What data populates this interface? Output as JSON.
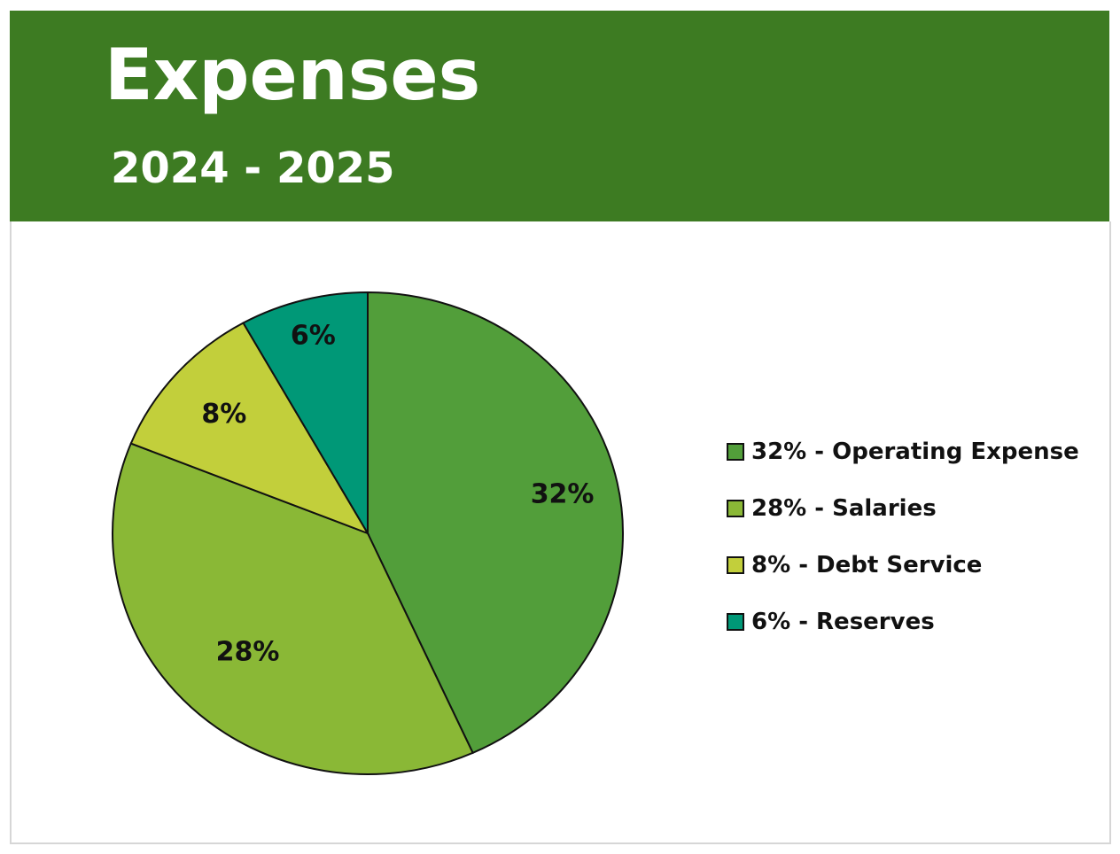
{
  "header": {
    "title": "Expenses",
    "subtitle": "2024 - 2025"
  },
  "chart_data": {
    "type": "pie",
    "title": "Expenses",
    "subtitle": "2024 - 2025",
    "categories": [
      "Operating Expense",
      "Salaries",
      "Debt Service",
      "Reserves"
    ],
    "values": [
      32,
      28,
      8,
      6
    ],
    "data_labels": [
      "32%",
      "28%",
      "8%",
      "6%"
    ],
    "colors": [
      "#529e3a",
      "#8ab836",
      "#c2cf3b",
      "#009877"
    ],
    "legend": {
      "placement": "right",
      "entries": [
        "32% - Operating Expense",
        "28% - Salaries",
        "8% - Debt Service",
        "6% - Reserves"
      ]
    },
    "header_color": "#3d7b22"
  }
}
